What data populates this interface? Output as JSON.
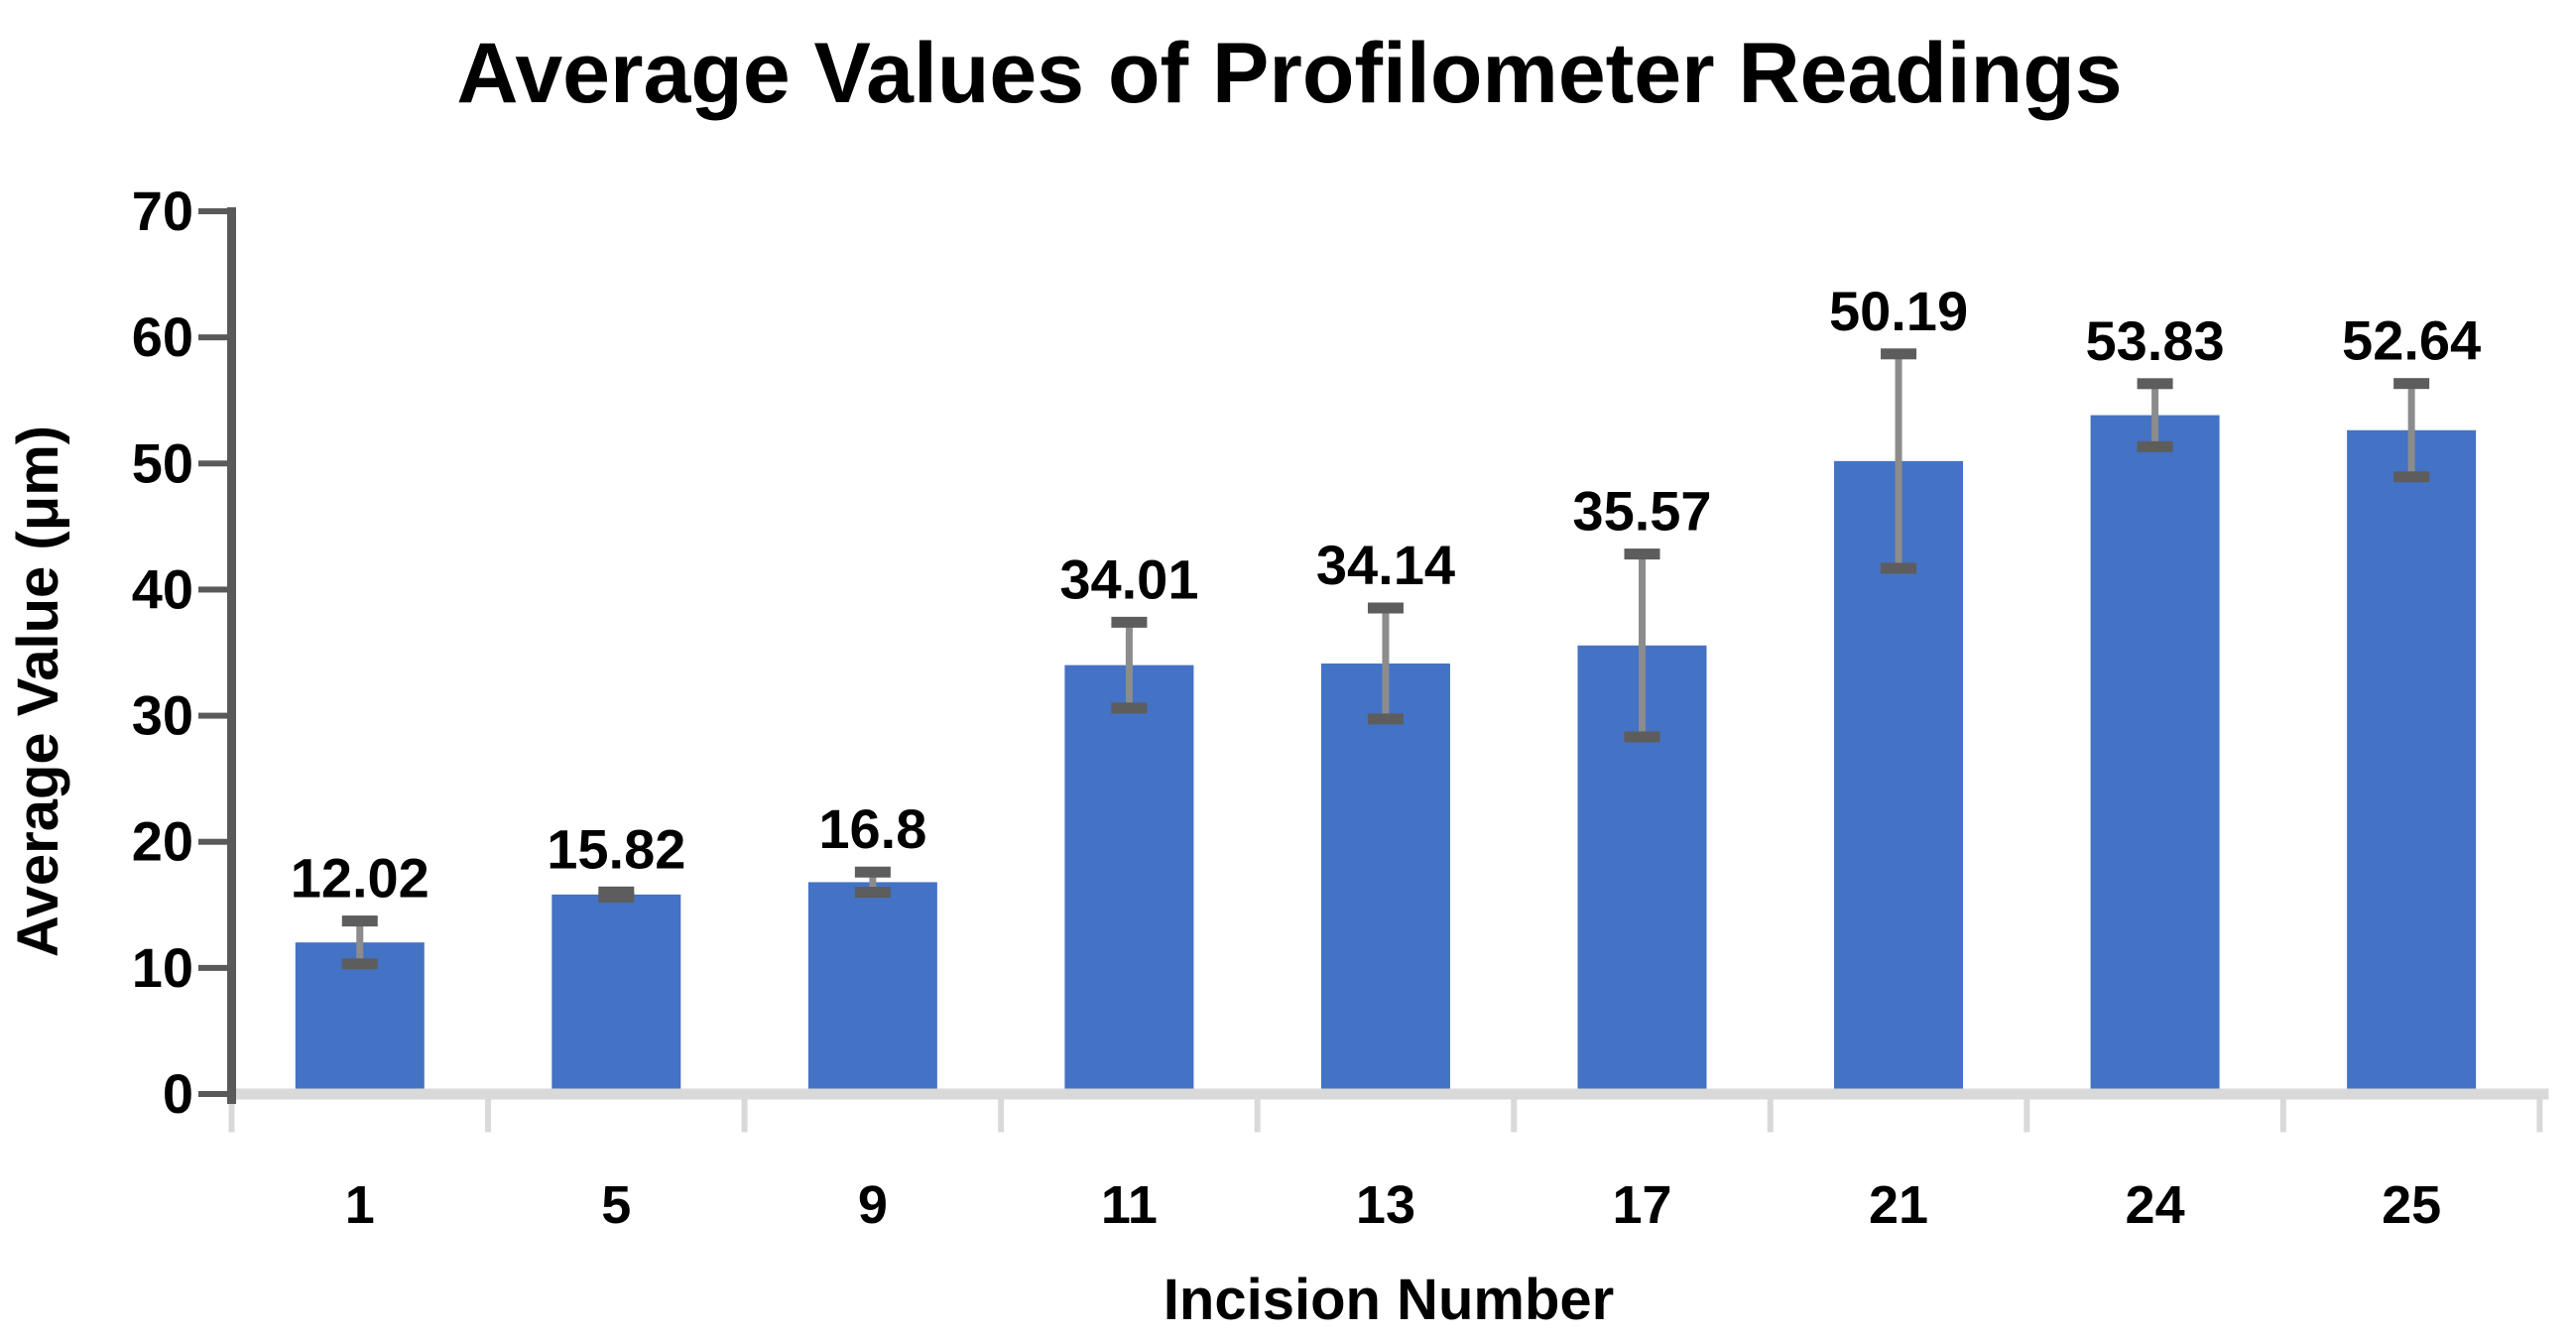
{
  "chart_data": {
    "type": "bar",
    "title": "Average Values of Profilometer Readings",
    "xlabel": "Incision Number",
    "ylabel": "Average Value (μm)",
    "categories": [
      "1",
      "5",
      "9",
      "11",
      "13",
      "17",
      "21",
      "24",
      "25"
    ],
    "values": [
      12.02,
      15.82,
      16.8,
      34.01,
      34.14,
      35.57,
      50.19,
      53.83,
      52.64
    ],
    "data_labels": [
      "12.02",
      "15.82",
      "16.8",
      "34.01",
      "34.14",
      "35.57",
      "50.19",
      "53.83",
      "52.64"
    ],
    "error_bars": [
      1.7,
      0.2,
      0.8,
      3.4,
      4.4,
      7.25,
      8.5,
      2.5,
      3.7
    ],
    "ylim": [
      0,
      70
    ],
    "ytick_step": 10,
    "ytick_labels": [
      "0",
      "10",
      "20",
      "30",
      "40",
      "50",
      "60",
      "70"
    ],
    "grid": false,
    "legend": false,
    "colors": {
      "bar": "#4472C4",
      "error_line": "#8C8C8C",
      "error_cap": "#5D5D5D",
      "y_axis": "#595959",
      "x_baseline": "#D9D9D9",
      "text": "#000000"
    }
  }
}
